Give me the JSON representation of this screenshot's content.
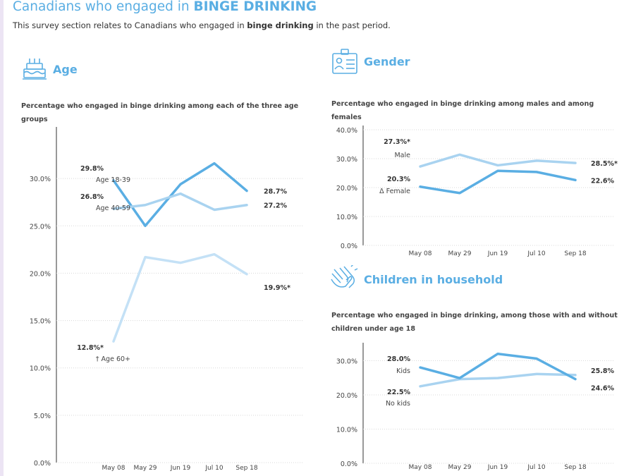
{
  "header": {
    "title_prefix": "Canadians who engaged in ",
    "title_emphasis": "BINGE DRINKING",
    "subtitle_prefix": "This survey section relates to Canadians who engaged in ",
    "subtitle_bold": "binge drinking",
    "subtitle_suffix": " in the past period."
  },
  "sections": {
    "age": {
      "title": "Age",
      "icon": "birthday-cake-icon",
      "description": "Percentage who engaged in binge drinking among each of the three age groups"
    },
    "gender": {
      "title": "Gender",
      "icon": "id-card-icon",
      "description": "Percentage who engaged in binge drinking among males and among females"
    },
    "children": {
      "title": "Children in household",
      "icon": "clapping-hands-icon",
      "description": "Percentage who engaged in binge drinking, among those with and without children under age 18"
    }
  },
  "colors": {
    "accent": "#5aaee3",
    "dark_series": "#5aaee3",
    "mid_series": "#a9d3f0",
    "light_series": "#c4e1f6",
    "divider": "#e6e6e6"
  },
  "chart_data": [
    {
      "id": "age",
      "type": "line",
      "title": "Percentage who engaged in binge drinking among each of the three age groups",
      "x": [
        "May 08",
        "May 29",
        "Jun 19",
        "Jul 10",
        "Sep 18"
      ],
      "ylim": [
        0,
        35
      ],
      "yticks": [
        0,
        5,
        10,
        15,
        20,
        25,
        30
      ],
      "ytick_labels": [
        "0.0%",
        "5.0%",
        "10.0%",
        "15.0%",
        "20.0%",
        "25.0%",
        "30.0%"
      ],
      "grid": true,
      "series": [
        {
          "name": "Age 18-39",
          "color": "#5aaee3",
          "values": [
            29.8,
            25.0,
            29.4,
            31.6,
            28.7
          ],
          "start_label": "29.8%",
          "end_label": "28.7%"
        },
        {
          "name": "Age 40-59",
          "color": "#a9d3f0",
          "values": [
            26.8,
            27.2,
            28.4,
            26.7,
            27.2
          ],
          "start_label": "26.8%",
          "end_label": "27.2%"
        },
        {
          "name": "† Age 60+",
          "color": "#c4e1f6",
          "values": [
            12.8,
            21.7,
            21.1,
            22.0,
            19.9
          ],
          "start_label": "12.8%*",
          "end_label": "19.9%*"
        }
      ]
    },
    {
      "id": "gender",
      "type": "line",
      "title": "Percentage who engaged in binge drinking among males and among females",
      "x": [
        "May 08",
        "May 29",
        "Jun 19",
        "Jul 10",
        "Sep 18"
      ],
      "ylim": [
        0,
        40
      ],
      "yticks": [
        0,
        10,
        20,
        30,
        40
      ],
      "ytick_labels": [
        "0.0%",
        "10.0%",
        "20.0%",
        "30.0%",
        "40.0%"
      ],
      "grid": true,
      "series": [
        {
          "name": "Male",
          "color": "#a9d3f0",
          "values": [
            27.3,
            31.4,
            27.7,
            29.3,
            28.5
          ],
          "start_label": "27.3%*",
          "end_label": "28.5%*"
        },
        {
          "name": "Δ Female",
          "color": "#5aaee3",
          "values": [
            20.3,
            18.1,
            25.8,
            25.4,
            22.6
          ],
          "start_label": "20.3%",
          "end_label": "22.6%"
        }
      ]
    },
    {
      "id": "children",
      "type": "line",
      "title": "Percentage who engaged in binge drinking, among those with and without children under age 18",
      "x": [
        "May 08",
        "May 29",
        "Jun 19",
        "Jul 10",
        "Sep 18"
      ],
      "ylim": [
        0,
        34
      ],
      "yticks": [
        0,
        10,
        20,
        30
      ],
      "ytick_labels": [
        "0.0%",
        "10.0%",
        "20.0%",
        "30.0%"
      ],
      "grid": true,
      "series": [
        {
          "name": "No kids",
          "color": "#a9d3f0",
          "values": [
            22.5,
            24.6,
            24.9,
            26.1,
            25.8
          ],
          "start_label": "22.5%",
          "end_label": "25.8%"
        },
        {
          "name": "Kids",
          "color": "#5aaee3",
          "values": [
            28.0,
            24.9,
            32.0,
            30.6,
            24.6
          ],
          "start_label": "28.0%",
          "end_label": "24.6%"
        }
      ]
    }
  ]
}
